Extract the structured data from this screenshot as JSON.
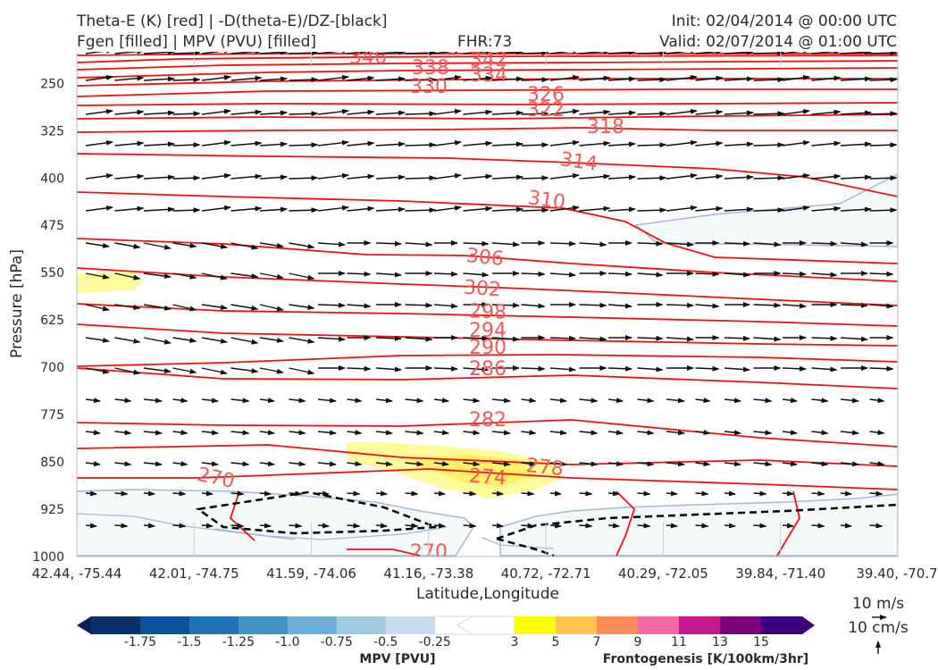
{
  "header": {
    "title_line1": "Theta-E (K) [red] | -D(theta-E)/DZ-[black]",
    "title_line2": "Fgen [filled] | MPV (PVU) [filled]",
    "fhr": "FHR:73",
    "init": "Init: 02/04/2014 @ 00:00 UTC",
    "valid": "Valid: 02/07/2014 @ 01:00 UTC"
  },
  "chart_data": {
    "type": "cross-section",
    "xlabel": "Latitude,Longitude",
    "ylabel": "Pressure [hPa]",
    "yticks": [
      250,
      325,
      400,
      475,
      550,
      625,
      700,
      775,
      850,
      925,
      1000
    ],
    "ylim": [
      1000,
      200
    ],
    "y_scale": "linear, inverted",
    "xticks": [
      "42.44, -75.44",
      "42.01, -74.75",
      "41.59, -74.06",
      "41.16, -73.38",
      "40.72, -72.71",
      "40.29, -72.05",
      "39.84, -71.40",
      "39.40, -70.7"
    ],
    "theta_e_labels": [
      "346",
      "342",
      "338",
      "334",
      "330",
      "326",
      "322",
      "318",
      "314",
      "310",
      "306",
      "302",
      "298",
      "294",
      "290",
      "286",
      "282",
      "278",
      "274",
      "270",
      "270"
    ],
    "theta_e_color": "#ee1111",
    "label_color": "#f05a5a",
    "mpv_colorbar": {
      "label": "MPV [PVU]",
      "ticks": [
        "-1.75",
        "-1.5",
        "-1.25",
        "-1.0",
        "-0.75",
        "-0.5",
        "-0.25"
      ],
      "colors": [
        "#08205c",
        "#08306b",
        "#08519c",
        "#2171b5",
        "#4292c6",
        "#6baed6",
        "#9ecae1",
        "#c6dbef"
      ]
    },
    "fgen_colorbar": {
      "label": "Frontogenesis [K/100km/3hr]",
      "ticks": [
        "3",
        "5",
        "7",
        "9",
        "11",
        "13",
        "15"
      ],
      "colors": [
        "#ffff00",
        "#fec44f",
        "#fc8d59",
        "#f768a1",
        "#c51b8a",
        "#7a0177",
        "#3f007d"
      ]
    },
    "vector_key": {
      "horizontal": "10 m/s",
      "vertical": "10 cm/s"
    }
  }
}
